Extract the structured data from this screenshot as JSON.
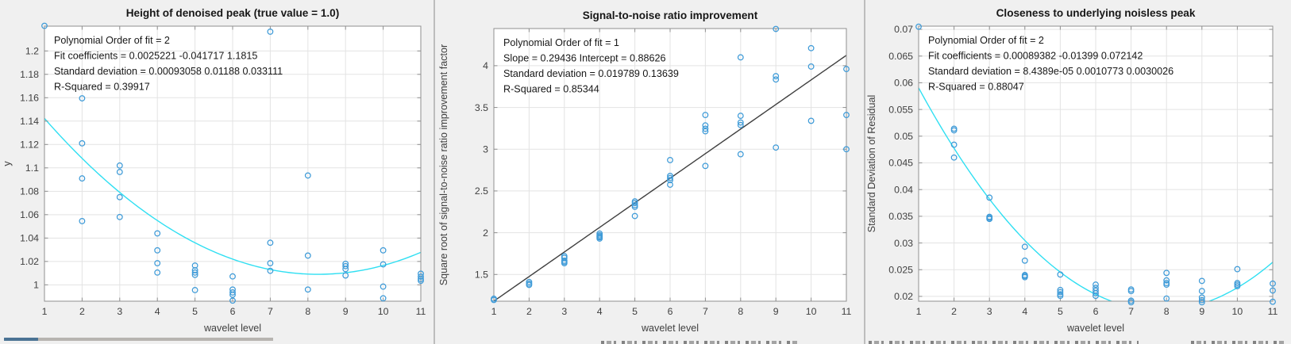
{
  "figure": {
    "background": "#f0f0f0",
    "plot_background": "#ffffff",
    "axis_color": "#8f8f8f",
    "grid_color": "#e3e3e3",
    "text_color": "#171717",
    "tick_label_color": "#404040",
    "marker_color": "#3f9bd8",
    "fit_cyan": "#2fdff2",
    "fit_dark": "#3f3f3f",
    "separator_color": "#9b9b9b"
  },
  "bottom_artifacts": {
    "taskbar_blue_color": "#4b7394",
    "taskbar_gray_color": "#b7b4b0"
  },
  "chart_data": [
    {
      "type": "scatter",
      "title": "Height of denoised peak (true value = 1.0)",
      "xlabel": "wavelet level",
      "ylabel": "y",
      "xlim": [
        1,
        11
      ],
      "ylim": [
        0.986,
        1.2212
      ],
      "xticks": [
        1,
        2,
        3,
        4,
        5,
        6,
        7,
        8,
        9,
        10,
        11
      ],
      "xtick_labels": [
        "1",
        "2",
        "3",
        "4",
        "5",
        "6",
        "7",
        "8",
        "9",
        "10",
        "11"
      ],
      "yticks": [
        1,
        1.02,
        1.04,
        1.06,
        1.08,
        1.1,
        1.12,
        1.14,
        1.16,
        1.18,
        1.2
      ],
      "ytick_labels": [
        "1",
        "1.02",
        "1.04",
        "1.06",
        "1.08",
        "1.1",
        "1.12",
        "1.14",
        "1.16",
        "1.18",
        "1.2"
      ],
      "grid": true,
      "annotation_lines": [
        "Polynomial Order of fit = 2",
        "Fit coefficients = 0.0025221  -0.041717      1.1815",
        "Standard deviation = 0.00093058    0.01188   0.033111",
        "R-Squared = 0.39917"
      ],
      "fit": {
        "order": 2,
        "coeffs": [
          0.0025221,
          -0.041717,
          1.1815
        ],
        "color": "cyan"
      },
      "points": [
        [
          1,
          1.2215
        ],
        [
          2,
          1.1595
        ],
        [
          2,
          1.121
        ],
        [
          2,
          1.091
        ],
        [
          2,
          1.0545
        ],
        [
          3,
          1.102
        ],
        [
          3,
          1.0965
        ],
        [
          3,
          1.075
        ],
        [
          3,
          1.058
        ],
        [
          4,
          1.044
        ],
        [
          4,
          1.0295
        ],
        [
          4,
          1.0185
        ],
        [
          4,
          1.0105
        ],
        [
          5,
          1.0165
        ],
        [
          5,
          1.0125
        ],
        [
          5,
          1.0105
        ],
        [
          5,
          1.0085
        ],
        [
          5,
          0.9955
        ],
        [
          6,
          1.0072
        ],
        [
          6,
          0.996
        ],
        [
          6,
          0.9935
        ],
        [
          6,
          0.9915
        ],
        [
          6,
          0.9865
        ],
        [
          7,
          1.2165
        ],
        [
          7,
          1.036
        ],
        [
          7,
          1.0185
        ],
        [
          7,
          1.012
        ],
        [
          8,
          1.0935
        ],
        [
          8,
          1.025
        ],
        [
          8,
          0.996
        ],
        [
          9,
          1.018
        ],
        [
          9,
          1.016
        ],
        [
          9,
          1.0135
        ],
        [
          9,
          1.008
        ],
        [
          10,
          1.0295
        ],
        [
          10,
          1.0175
        ],
        [
          10,
          0.9985
        ],
        [
          10,
          0.9885
        ],
        [
          11,
          1.0095
        ],
        [
          11,
          1.007
        ],
        [
          11,
          1.005
        ],
        [
          11,
          1.0035
        ]
      ]
    },
    {
      "type": "scatter",
      "title": "Signal-to-noise ratio improvement",
      "xlabel": "wavelet level",
      "ylabel": "Square root of signal-to-noise ratio improvement factor",
      "xlim": [
        1,
        11
      ],
      "ylim": [
        1.18,
        4.445
      ],
      "xticks": [
        1,
        2,
        3,
        4,
        5,
        6,
        7,
        8,
        9,
        10,
        11
      ],
      "xtick_labels": [
        "1",
        "2",
        "3",
        "4",
        "5",
        "6",
        "7",
        "8",
        "9",
        "10",
        "11"
      ],
      "yticks": [
        1.5,
        2,
        2.5,
        3,
        3.5,
        4
      ],
      "ytick_labels": [
        "1.5",
        "2",
        "2.5",
        "3",
        "3.5",
        "4"
      ],
      "grid": true,
      "annotation_lines": [
        "Polynomial Order of fit = 1",
        "Slope = 0.29436   Intercept = 0.88626",
        "Standard deviation = 0.019789    0.13639",
        "R-Squared = 0.85344"
      ],
      "fit": {
        "order": 1,
        "coeffs": [
          0.29436,
          0.88626
        ],
        "color": "dark"
      },
      "points": [
        [
          1,
          1.21
        ],
        [
          1,
          1.195
        ],
        [
          2,
          1.41
        ],
        [
          2,
          1.39
        ],
        [
          2,
          1.375
        ],
        [
          3,
          1.72
        ],
        [
          3,
          1.7
        ],
        [
          3,
          1.665
        ],
        [
          3,
          1.65
        ],
        [
          3,
          1.635
        ],
        [
          4,
          1.99
        ],
        [
          4,
          1.97
        ],
        [
          4,
          1.955
        ],
        [
          4,
          1.945
        ],
        [
          4,
          1.93
        ],
        [
          5,
          2.375
        ],
        [
          5,
          2.355
        ],
        [
          5,
          2.33
        ],
        [
          5,
          2.31
        ],
        [
          5,
          2.2
        ],
        [
          6,
          2.87
        ],
        [
          6,
          2.68
        ],
        [
          6,
          2.655
        ],
        [
          6,
          2.63
        ],
        [
          6,
          2.575
        ],
        [
          7,
          3.41
        ],
        [
          7,
          3.285
        ],
        [
          7,
          3.245
        ],
        [
          7,
          3.215
        ],
        [
          7,
          2.8
        ],
        [
          8,
          4.1
        ],
        [
          8,
          3.4
        ],
        [
          8,
          3.32
        ],
        [
          8,
          3.29
        ],
        [
          8,
          2.94
        ],
        [
          9,
          4.44
        ],
        [
          9,
          3.875
        ],
        [
          9,
          3.835
        ],
        [
          9,
          3.02
        ],
        [
          10,
          4.21
        ],
        [
          10,
          3.99
        ],
        [
          10,
          3.34
        ],
        [
          11,
          3.96
        ],
        [
          11,
          3.41
        ],
        [
          11,
          3.0
        ]
      ]
    },
    {
      "type": "scatter",
      "title": "Closeness to underlying noisless peak",
      "xlabel": "wavelet level",
      "ylabel": "Standard Deviation of Residual",
      "xlim": [
        1,
        11
      ],
      "ylim": [
        0.0191,
        0.0706
      ],
      "xticks": [
        1,
        2,
        3,
        4,
        5,
        6,
        7,
        8,
        9,
        10,
        11
      ],
      "xtick_labels": [
        "1",
        "2",
        "3",
        "4",
        "5",
        "6",
        "7",
        "8",
        "9",
        "10",
        "11"
      ],
      "yticks": [
        0.02,
        0.025,
        0.03,
        0.035,
        0.04,
        0.045,
        0.05,
        0.055,
        0.06,
        0.065,
        0.07
      ],
      "ytick_labels": [
        "0.02",
        "0.025",
        "0.03",
        "0.035",
        "0.04",
        "0.045",
        "0.05",
        "0.055",
        "0.06",
        "0.065",
        "0.07"
      ],
      "grid": true,
      "annotation_lines": [
        "Polynomial Order of fit = 2",
        "Fit coefficients = 0.00089382   -0.01399   0.072142",
        "Standard deviation = 8.4389e-05   0.0010773   0.0030026",
        "R-Squared = 0.88047"
      ],
      "fit": {
        "order": 2,
        "coeffs": [
          0.00089382,
          -0.01399,
          0.072142
        ],
        "color": "cyan"
      },
      "points": [
        [
          1,
          0.0705
        ],
        [
          2,
          0.0514
        ],
        [
          2,
          0.0511
        ],
        [
          2,
          0.0484
        ],
        [
          2,
          0.046
        ],
        [
          3,
          0.0385
        ],
        [
          3,
          0.0349
        ],
        [
          3,
          0.0347
        ],
        [
          3,
          0.0345
        ],
        [
          4,
          0.0293
        ],
        [
          4,
          0.0267
        ],
        [
          4,
          0.024
        ],
        [
          4,
          0.0238
        ],
        [
          4,
          0.0236
        ],
        [
          5,
          0.0241
        ],
        [
          5,
          0.0212
        ],
        [
          5,
          0.0208
        ],
        [
          5,
          0.0204
        ],
        [
          5,
          0.0201
        ],
        [
          6,
          0.0222
        ],
        [
          6,
          0.0216
        ],
        [
          6,
          0.0211
        ],
        [
          6,
          0.0206
        ],
        [
          6,
          0.0201
        ],
        [
          7,
          0.0213
        ],
        [
          7,
          0.021
        ],
        [
          7,
          0.0192
        ],
        [
          7,
          0.0189
        ],
        [
          8,
          0.0244
        ],
        [
          8,
          0.023
        ],
        [
          8,
          0.0225
        ],
        [
          8,
          0.0222
        ],
        [
          8,
          0.0196
        ],
        [
          9,
          0.0229
        ],
        [
          9,
          0.021
        ],
        [
          9,
          0.0198
        ],
        [
          9,
          0.0193
        ],
        [
          9,
          0.0189
        ],
        [
          10,
          0.0251
        ],
        [
          10,
          0.0225
        ],
        [
          10,
          0.0222
        ],
        [
          10,
          0.0219
        ],
        [
          11,
          0.0224
        ],
        [
          11,
          0.0211
        ],
        [
          11,
          0.019
        ]
      ]
    }
  ]
}
